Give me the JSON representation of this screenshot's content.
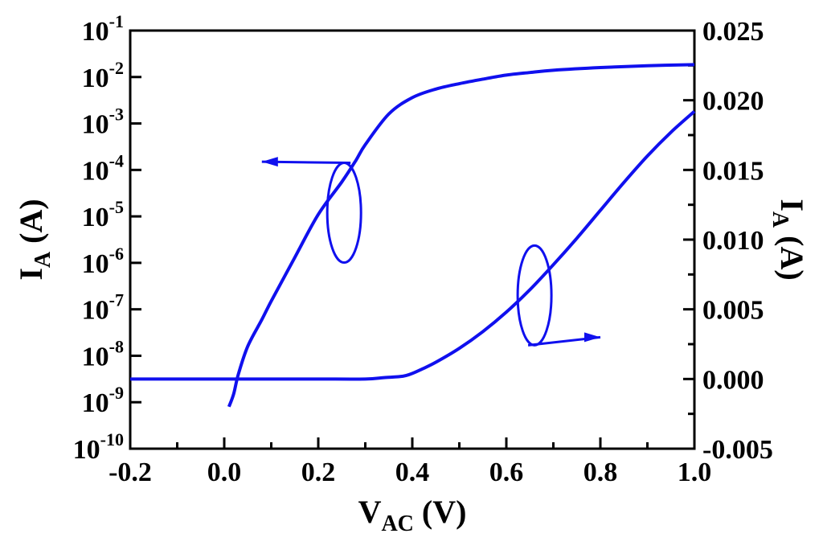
{
  "chart_data": {
    "type": "line",
    "xlabel": {
      "main": "V",
      "sub": "AC",
      "unit": " (V)"
    },
    "ylabel_left": {
      "main": "I",
      "sub": "A",
      "unit": " (A)"
    },
    "ylabel_right": {
      "main": "I",
      "sub": "A",
      "unit": " (A)"
    },
    "x_ticks": [
      {
        "value": -0.2,
        "label": "-0.2"
      },
      {
        "value": 0.0,
        "label": "0.0"
      },
      {
        "value": 0.2,
        "label": "0.2"
      },
      {
        "value": 0.4,
        "label": "0.4"
      },
      {
        "value": 0.6,
        "label": "0.6"
      },
      {
        "value": 0.8,
        "label": "0.8"
      },
      {
        "value": 1.0,
        "label": "1.0"
      }
    ],
    "xlim": [
      -0.2,
      1.0
    ],
    "y_left": {
      "scale": "log",
      "ylim": [
        1e-10,
        0.1
      ],
      "ticks": [
        {
          "value": 0.1,
          "base": "10",
          "exp": "-1"
        },
        {
          "value": 0.01,
          "base": "10",
          "exp": "-2"
        },
        {
          "value": 0.001,
          "base": "10",
          "exp": "-3"
        },
        {
          "value": 0.0001,
          "base": "10",
          "exp": "-4"
        },
        {
          "value": 1e-05,
          "base": "10",
          "exp": "-5"
        },
        {
          "value": 1e-06,
          "base": "10",
          "exp": "-6"
        },
        {
          "value": 1e-07,
          "base": "10",
          "exp": "-7"
        },
        {
          "value": 1e-08,
          "base": "10",
          "exp": "-8"
        },
        {
          "value": 1e-09,
          "base": "10",
          "exp": "-9"
        },
        {
          "value": 1e-10,
          "base": "10",
          "exp": "-10"
        }
      ]
    },
    "y_right": {
      "scale": "linear",
      "ylim": [
        -0.005,
        0.025
      ],
      "ticks": [
        {
          "value": 0.025,
          "label": "0.025"
        },
        {
          "value": 0.02,
          "label": "0.020"
        },
        {
          "value": 0.015,
          "label": "0.015"
        },
        {
          "value": 0.01,
          "label": "0.010"
        },
        {
          "value": 0.005,
          "label": "0.005"
        },
        {
          "value": 0.0,
          "label": "0.000"
        },
        {
          "value": -0.005,
          "label": "-0.005"
        }
      ]
    },
    "grid": false,
    "series": [
      {
        "axis": "left",
        "color": "#1010ee",
        "x": [
          0.01,
          0.02,
          0.03,
          0.05,
          0.08,
          0.1,
          0.15,
          0.2,
          0.25,
          0.28,
          0.3,
          0.35,
          0.4,
          0.45,
          0.5,
          0.55,
          0.6,
          0.65,
          0.7,
          0.8,
          0.9,
          1.0
        ],
        "y": [
          8e-10,
          1.5e-09,
          4e-09,
          1.6e-08,
          6e-08,
          1.5e-07,
          1.3e-06,
          1.1e-05,
          5.5e-05,
          0.00016,
          0.00035,
          0.0016,
          0.0036,
          0.0055,
          0.0072,
          0.009,
          0.011,
          0.0125,
          0.014,
          0.016,
          0.0175,
          0.0185
        ]
      },
      {
        "axis": "right",
        "color": "#1010ee",
        "x": [
          -0.2,
          0.0,
          0.1,
          0.2,
          0.3,
          0.34,
          0.38,
          0.4,
          0.42,
          0.45,
          0.5,
          0.55,
          0.6,
          0.65,
          0.7,
          0.75,
          0.8,
          0.85,
          0.9,
          0.95,
          1.0
        ],
        "y": [
          0.0,
          0.0,
          0.0,
          0.0,
          0.0,
          0.0001,
          0.0002,
          0.0004,
          0.0007,
          0.0012,
          0.0022,
          0.0034,
          0.0048,
          0.0064,
          0.0082,
          0.0101,
          0.0121,
          0.0141,
          0.016,
          0.0177,
          0.0192
        ]
      }
    ],
    "annotations": [
      {
        "type": "ellipse-arrow",
        "target_axis": "left",
        "direction": "left",
        "cx": 0.255,
        "cy_log": 1.2e-05,
        "arrow_to_x": 0.08,
        "arrow_y_log": 0.00015
      },
      {
        "type": "ellipse-arrow",
        "target_axis": "right",
        "direction": "right",
        "cx": 0.66,
        "cy": 0.006,
        "arrow_to_x": 0.8,
        "arrow_y": 0.003
      }
    ]
  }
}
